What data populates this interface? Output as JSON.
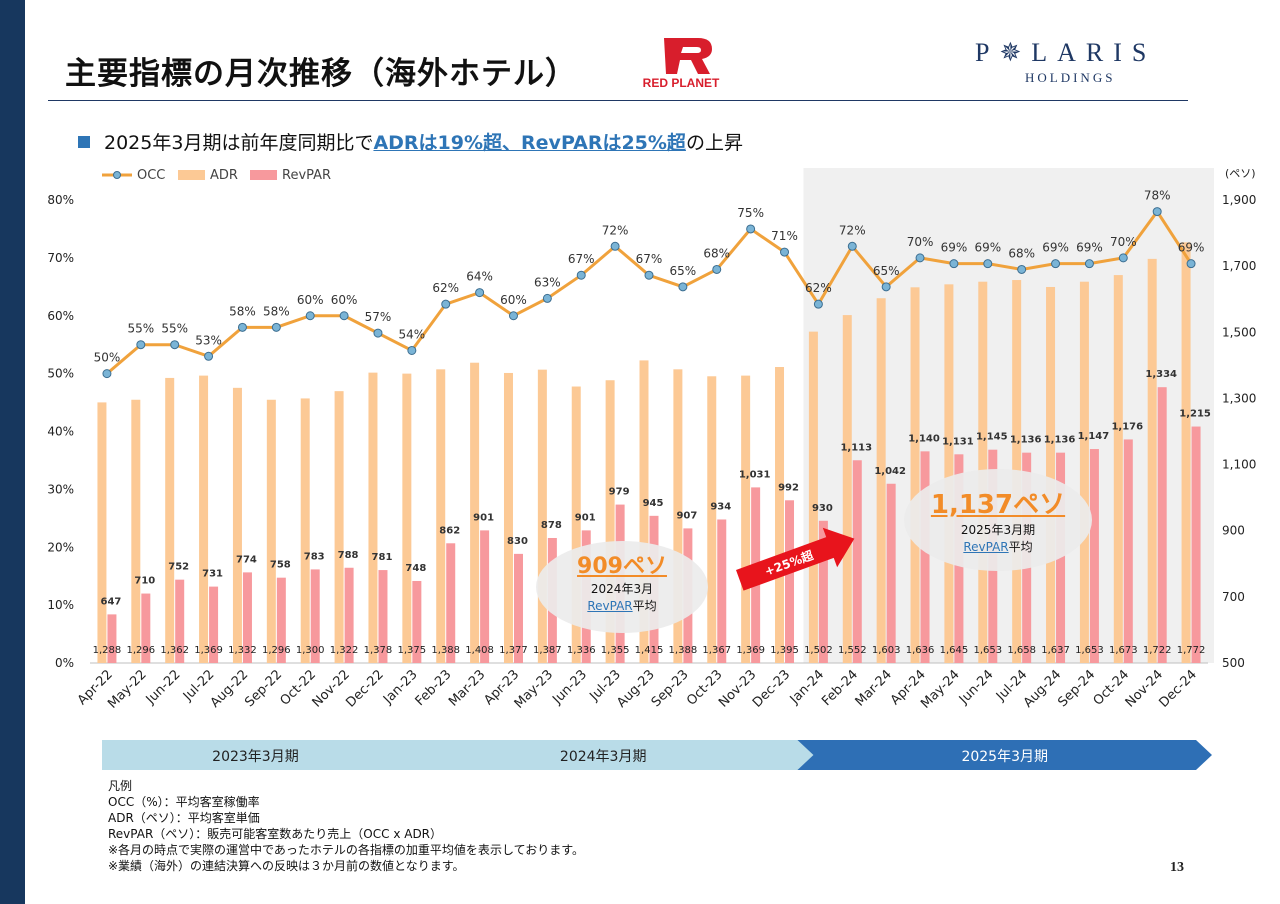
{
  "title": "主要指標の月次推移（海外ホテル）",
  "logos": {
    "red_planet": "RED PLANET",
    "polaris_name": "P✵LARIS",
    "polaris_sub": "HOLDINGS"
  },
  "headline": {
    "prefix": "2025年3月期は前年度同期比で",
    "highlight": "ADRは19%超、RevPARは25%超",
    "suffix": "の上昇"
  },
  "colors": {
    "occ_line": "#f0a23c",
    "occ_marker": "#7ab4d6",
    "adr_bar": "#fcc995",
    "revpar_bar": "#f7999d",
    "arrow": "#e8141c",
    "fy2023": "#b9dce8",
    "fy2024": "#b9dce8",
    "fy2025": "#2e6fb5",
    "shade": "#f0f0f0",
    "accent": "#2e75b6"
  },
  "chart_data": {
    "type": "bar",
    "categories": [
      "Apr-22",
      "May-22",
      "Jun-22",
      "Jul-22",
      "Aug-22",
      "Sep-22",
      "Oct-22",
      "Nov-22",
      "Dec-22",
      "Jan-23",
      "Feb-23",
      "Mar-23",
      "Apr-23",
      "May-23",
      "Jun-23",
      "Jul-23",
      "Aug-23",
      "Sep-23",
      "Oct-23",
      "Nov-23",
      "Dec-23",
      "Jan-24",
      "Feb-24",
      "Mar-24",
      "Apr-24",
      "May-24",
      "Jun-24",
      "Jul-24",
      "Aug-24",
      "Sep-24",
      "Oct-24",
      "Nov-24",
      "Dec-24"
    ],
    "series": [
      {
        "name": "OCC",
        "type": "line",
        "axis": "left",
        "values": [
          50,
          55,
          55,
          53,
          58,
          58,
          60,
          60,
          57,
          54,
          62,
          64,
          60,
          63,
          67,
          72,
          67,
          65,
          68,
          75,
          71,
          62,
          72,
          65,
          70,
          69,
          69,
          68,
          69,
          69,
          70,
          78,
          69
        ],
        "labels": [
          "50%",
          "55%",
          "55%",
          "53%",
          "58%",
          "58%",
          "60%",
          "60%",
          "57%",
          "54%",
          "62%",
          "64%",
          "60%",
          "63%",
          "67%",
          "72%",
          "67%",
          "65%",
          "68%",
          "75%",
          "71%",
          "62%",
          "72%",
          "65%",
          "70%",
          "69%",
          "69%",
          "68%",
          "69%",
          "69%",
          "70%",
          "78%",
          "69%"
        ]
      },
      {
        "name": "ADR",
        "type": "bar",
        "axis": "right",
        "values": [
          1288,
          1296,
          1362,
          1369,
          1332,
          1296,
          1300,
          1322,
          1378,
          1375,
          1388,
          1408,
          1377,
          1387,
          1336,
          1355,
          1415,
          1388,
          1367,
          1369,
          1395,
          1502,
          1552,
          1603,
          1636,
          1645,
          1653,
          1658,
          1637,
          1653,
          1673,
          1722,
          1772
        ],
        "labels": [
          "1,288",
          "1,296",
          "1,362",
          "1,369",
          "1,332",
          "1,296",
          "1,300",
          "1,322",
          "1,378",
          "1,375",
          "1,388",
          "1,408",
          "1,377",
          "1,387",
          "1,336",
          "1,355",
          "1,415",
          "1,388",
          "1,367",
          "1,369",
          "1,395",
          "1,502",
          "1,552",
          "1,603",
          "1,636",
          "1,645",
          "1,653",
          "1,658",
          "1,637",
          "1,653",
          "1,673",
          "1,722",
          "1,772"
        ]
      },
      {
        "name": "RevPAR",
        "type": "bar",
        "axis": "right",
        "values": [
          647,
          710,
          752,
          731,
          774,
          758,
          783,
          788,
          781,
          748,
          862,
          901,
          830,
          878,
          901,
          979,
          945,
          907,
          934,
          1031,
          992,
          930,
          1113,
          1042,
          1140,
          1131,
          1145,
          1136,
          1136,
          1147,
          1176,
          1334,
          1215
        ],
        "labels": [
          "647",
          "710",
          "752",
          "731",
          "774",
          "758",
          "783",
          "788",
          "781",
          "748",
          "862",
          "901",
          "830",
          "878",
          "901",
          "979",
          "945",
          "907",
          "934",
          "1,031",
          "992",
          "930",
          "1,113",
          "1,042",
          "1,140",
          "1,131",
          "1,145",
          "1,136",
          "1,136",
          "1,147",
          "1,176",
          "1,334",
          "1,215"
        ]
      }
    ],
    "left_axis": {
      "min": 0,
      "max": 80,
      "ticks": [
        0,
        10,
        20,
        30,
        40,
        50,
        60,
        70,
        80
      ],
      "tick_labels": [
        "0%",
        "10%",
        "20%",
        "30%",
        "40%",
        "50%",
        "60%",
        "70%",
        "80%"
      ]
    },
    "right_axis": {
      "unit": "(ペソ)",
      "min": 500,
      "max": 1900,
      "ticks": [
        500,
        700,
        900,
        1100,
        1300,
        1500,
        1700,
        1900
      ],
      "tick_labels": [
        "500",
        "700",
        "900",
        "1,100",
        "1,300",
        "1,500",
        "1,700",
        "1,900"
      ]
    },
    "legend": [
      "OCC",
      "ADR",
      "RevPAR"
    ],
    "legend_position": "top-left",
    "grid": false,
    "shaded_from_category": "Jan-24",
    "fiscal_periods": [
      {
        "label": "2023年3月期",
        "from": "Apr-22",
        "to": "Dec-22"
      },
      {
        "label": "2024年3月期",
        "from": "Jan-23",
        "to": "Dec-23"
      },
      {
        "label": "2025年3月期",
        "from": "Jan-24",
        "to": "Dec-24"
      }
    ],
    "callouts": [
      {
        "value": "909ペソ",
        "line1": "2024年3月",
        "line2a": "RevPAR",
        "line2b": "平均"
      },
      {
        "value": "1,137ペソ",
        "line1": "2025年3月期",
        "line2a": "RevPAR",
        "line2b": "平均"
      }
    ],
    "arrow_label": "+25%超"
  },
  "legend_notes": [
    "凡例",
    "OCC（%）：平均客室稼働率",
    "ADR（ペソ）：平均客室単価",
    "RevPAR（ペソ）：販売可能客室数あたり売上（OCC x ADR）",
    "※各月の時点で実際の運営中であったホテルの各指標の加重平均値を表示しております。",
    "※業績（海外）の連結決算への反映は３か月前の数値となります。"
  ],
  "page_number": "13"
}
